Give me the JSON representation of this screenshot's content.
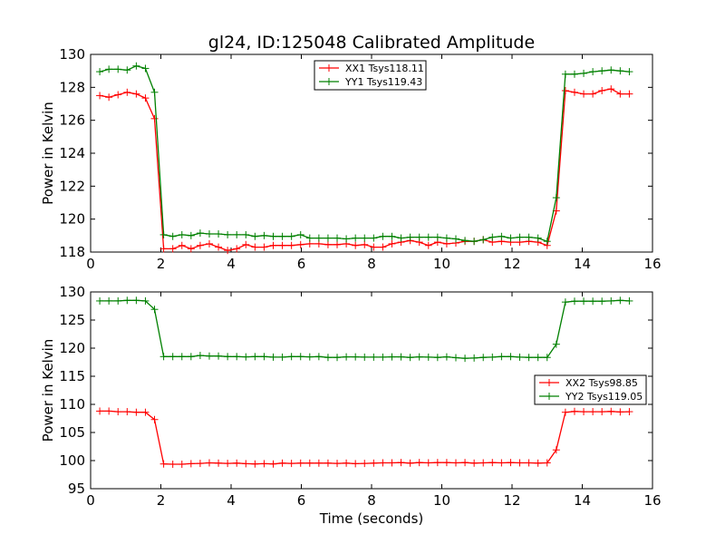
{
  "title": "gl24, ID:125048 Calibrated Amplitude",
  "chart_data": [
    {
      "type": "line",
      "title": "gl24, ID:125048 Calibrated Amplitude",
      "xlabel": "",
      "ylabel": "Power in Kelvin",
      "xlim": [
        0,
        16
      ],
      "ylim": [
        118,
        130
      ],
      "xticks": [
        0,
        2,
        4,
        6,
        8,
        10,
        12,
        14,
        16
      ],
      "yticks": [
        118,
        120,
        122,
        124,
        126,
        128,
        130
      ],
      "xtick_labels": [
        "0",
        "2",
        "4",
        "6",
        "8",
        "10",
        "12",
        "14",
        "16"
      ],
      "ytick_labels": [
        "118",
        "120",
        "122",
        "124",
        "126",
        "128",
        "130"
      ],
      "grid": false,
      "legend_position": "top-center",
      "x": [
        0.26,
        0.52,
        0.78,
        1.04,
        1.3,
        1.56,
        1.82,
        2.08,
        2.34,
        2.6,
        2.86,
        3.12,
        3.38,
        3.64,
        3.9,
        4.16,
        4.42,
        4.68,
        4.94,
        5.2,
        5.46,
        5.72,
        5.98,
        6.24,
        6.5,
        6.76,
        7.02,
        7.28,
        7.54,
        7.8,
        8.06,
        8.32,
        8.58,
        8.84,
        9.1,
        9.36,
        9.62,
        9.88,
        10.14,
        10.4,
        10.66,
        10.92,
        11.18,
        11.44,
        11.7,
        11.96,
        12.22,
        12.48,
        12.74,
        13.0,
        13.26,
        13.52,
        13.78,
        14.04,
        14.3,
        14.56,
        14.82,
        15.08,
        15.34
      ],
      "series": [
        {
          "name": "XX1 Tsys118.11",
          "color": "#ff0000",
          "values": [
            127.5,
            127.4,
            127.55,
            127.7,
            127.6,
            127.35,
            126.1,
            118.2,
            118.2,
            118.4,
            118.2,
            118.4,
            118.5,
            118.3,
            118.1,
            118.2,
            118.45,
            118.3,
            118.3,
            118.4,
            118.4,
            118.4,
            118.45,
            118.5,
            118.5,
            118.45,
            118.45,
            118.5,
            118.4,
            118.45,
            118.3,
            118.3,
            118.5,
            118.6,
            118.7,
            118.6,
            118.4,
            118.6,
            118.5,
            118.55,
            118.65,
            118.65,
            118.75,
            118.6,
            118.65,
            118.6,
            118.6,
            118.65,
            118.6,
            118.4,
            120.5,
            127.8,
            127.7,
            127.6,
            127.6,
            127.8,
            127.9,
            127.6,
            127.6
          ]
        },
        {
          "name": "YY1 Tsys119.43",
          "color": "#008000",
          "values": [
            128.95,
            129.1,
            129.1,
            129.05,
            129.3,
            129.15,
            127.7,
            119.05,
            118.95,
            119.05,
            119.0,
            119.15,
            119.1,
            119.1,
            119.05,
            119.05,
            119.05,
            118.95,
            119.0,
            118.95,
            118.95,
            118.95,
            119.05,
            118.85,
            118.85,
            118.85,
            118.85,
            118.8,
            118.85,
            118.85,
            118.85,
            118.95,
            118.95,
            118.85,
            118.9,
            118.9,
            118.9,
            118.9,
            118.85,
            118.8,
            118.7,
            118.65,
            118.75,
            118.9,
            118.95,
            118.85,
            118.9,
            118.9,
            118.85,
            118.65,
            121.3,
            128.8,
            128.8,
            128.85,
            128.95,
            129.0,
            129.05,
            129.0,
            128.95
          ]
        }
      ]
    },
    {
      "type": "line",
      "title": "",
      "xlabel": "Time (seconds)",
      "ylabel": "Power in Kelvin",
      "xlim": [
        0,
        16
      ],
      "ylim": [
        95,
        130
      ],
      "xticks": [
        0,
        2,
        4,
        6,
        8,
        10,
        12,
        14,
        16
      ],
      "yticks": [
        95,
        100,
        105,
        110,
        115,
        120,
        125,
        130
      ],
      "xtick_labels": [
        "0",
        "2",
        "4",
        "6",
        "8",
        "10",
        "12",
        "14",
        "16"
      ],
      "ytick_labels": [
        "95",
        "100",
        "105",
        "110",
        "115",
        "120",
        "125",
        "130"
      ],
      "grid": false,
      "legend_position": "center-right",
      "x": [
        0.26,
        0.52,
        0.78,
        1.04,
        1.3,
        1.56,
        1.82,
        2.08,
        2.34,
        2.6,
        2.86,
        3.12,
        3.38,
        3.64,
        3.9,
        4.16,
        4.42,
        4.68,
        4.94,
        5.2,
        5.46,
        5.72,
        5.98,
        6.24,
        6.5,
        6.76,
        7.02,
        7.28,
        7.54,
        7.8,
        8.06,
        8.32,
        8.58,
        8.84,
        9.1,
        9.36,
        9.62,
        9.88,
        10.14,
        10.4,
        10.66,
        10.92,
        11.18,
        11.44,
        11.7,
        11.96,
        12.22,
        12.48,
        12.74,
        13.0,
        13.26,
        13.52,
        13.78,
        14.04,
        14.3,
        14.56,
        14.82,
        15.08,
        15.34
      ],
      "series": [
        {
          "name": "XX2 Tsys98.85",
          "color": "#ff0000",
          "values": [
            108.8,
            108.8,
            108.7,
            108.7,
            108.6,
            108.6,
            107.3,
            99.4,
            99.35,
            99.35,
            99.45,
            99.5,
            99.6,
            99.55,
            99.5,
            99.55,
            99.45,
            99.4,
            99.45,
            99.4,
            99.55,
            99.5,
            99.55,
            99.55,
            99.55,
            99.55,
            99.5,
            99.55,
            99.45,
            99.5,
            99.55,
            99.6,
            99.6,
            99.65,
            99.55,
            99.65,
            99.6,
            99.65,
            99.65,
            99.6,
            99.65,
            99.55,
            99.6,
            99.65,
            99.6,
            99.65,
            99.6,
            99.6,
            99.55,
            99.6,
            101.9,
            108.6,
            108.75,
            108.7,
            108.7,
            108.7,
            108.75,
            108.65,
            108.7
          ]
        },
        {
          "name": "YY2 Tsys119.05",
          "color": "#008000",
          "values": [
            128.4,
            128.4,
            128.4,
            128.5,
            128.5,
            128.4,
            126.9,
            118.5,
            118.5,
            118.5,
            118.5,
            118.7,
            118.6,
            118.6,
            118.5,
            118.5,
            118.45,
            118.5,
            118.5,
            118.4,
            118.4,
            118.5,
            118.5,
            118.45,
            118.5,
            118.35,
            118.35,
            118.45,
            118.45,
            118.4,
            118.4,
            118.4,
            118.45,
            118.45,
            118.35,
            118.45,
            118.4,
            118.35,
            118.45,
            118.3,
            118.2,
            118.25,
            118.35,
            118.4,
            118.5,
            118.5,
            118.4,
            118.35,
            118.35,
            118.35,
            120.7,
            128.2,
            128.35,
            128.35,
            128.35,
            128.35,
            128.4,
            128.5,
            128.4
          ]
        }
      ]
    }
  ]
}
